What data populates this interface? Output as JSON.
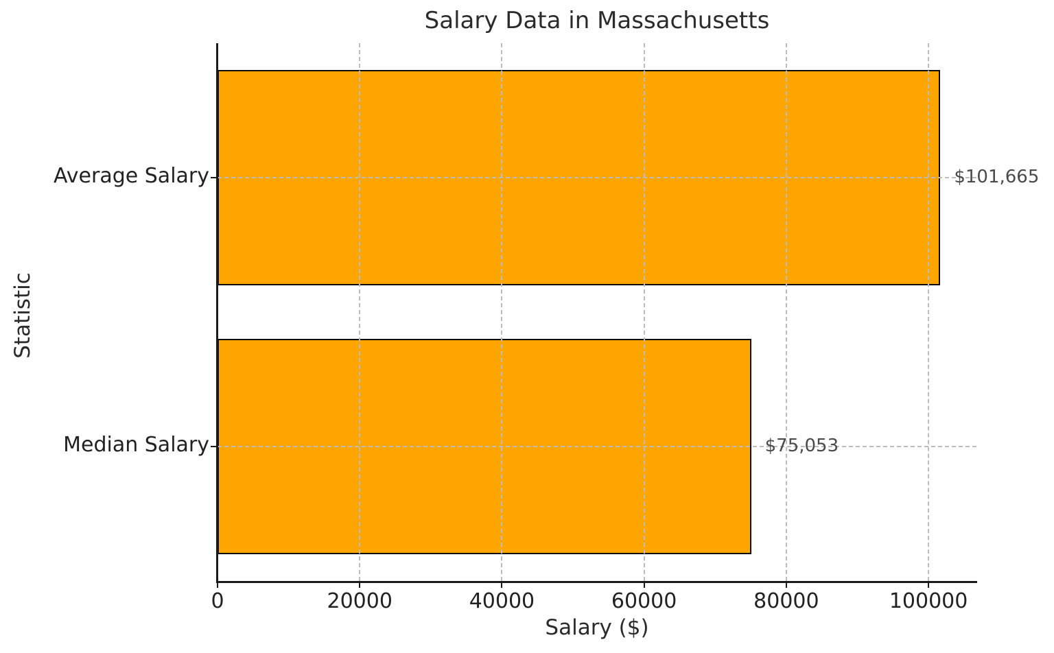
{
  "chart_data": {
    "type": "bar",
    "orientation": "horizontal",
    "title": "Salary Data in Massachusetts",
    "xlabel": "Salary ($)",
    "ylabel": "Statistic",
    "categories": [
      "Average Salary",
      "Median Salary"
    ],
    "values": [
      101665,
      75053
    ],
    "value_labels": [
      "$101,665",
      "$75,053"
    ],
    "x_ticks": [
      0,
      20000,
      40000,
      60000,
      80000,
      100000
    ],
    "x_tick_labels": [
      "0",
      "20000",
      "40000",
      "60000",
      "80000",
      "100000"
    ],
    "xlim": [
      0,
      106748
    ],
    "bar_color": "#FFA500",
    "bar_edge_color": "#0d0d0d",
    "grid_style": "dashed",
    "grid_color": "#bcbcbc",
    "grid_above_bars": true,
    "legend": "none",
    "background_color": "#ffffff"
  }
}
